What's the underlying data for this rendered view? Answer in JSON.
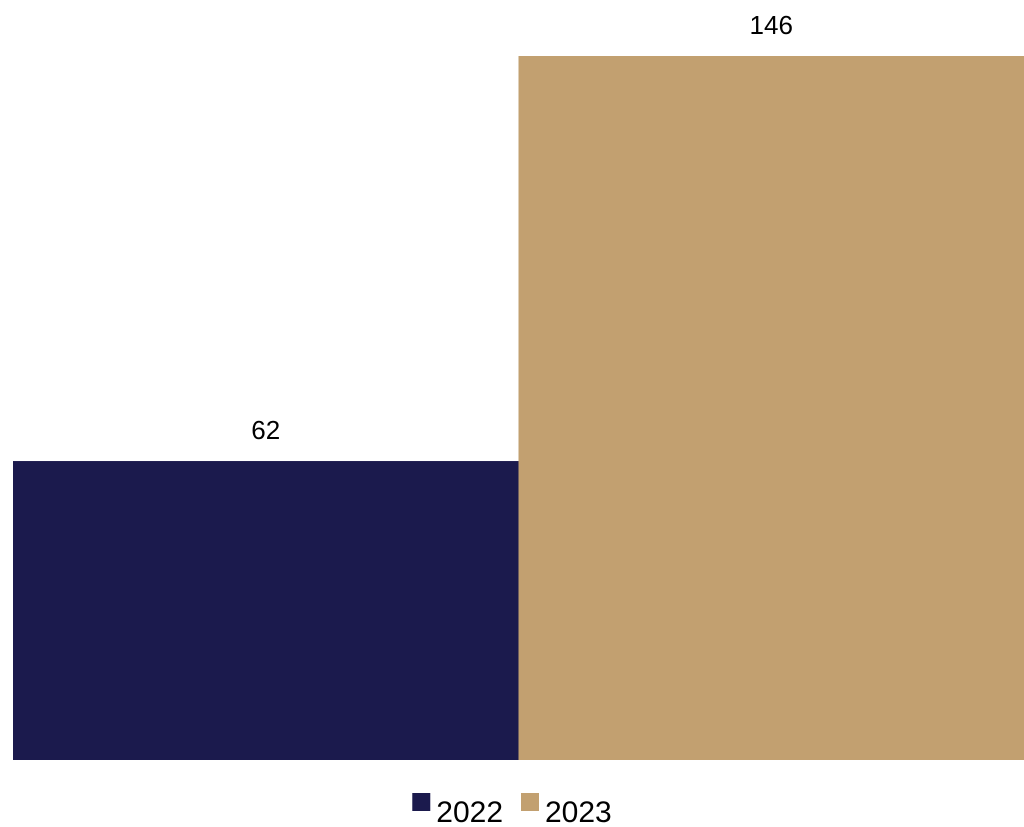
{
  "chart_data": {
    "type": "bar",
    "categories": [
      ""
    ],
    "series": [
      {
        "name": "2022",
        "values": [
          62
        ],
        "color": "#1b1a4d"
      },
      {
        "name": "2023",
        "values": [
          146
        ],
        "color": "#c2a070"
      }
    ],
    "ylim": [
      0,
      146
    ],
    "grid": false,
    "data_labels": true,
    "legend_position": "bottom"
  }
}
